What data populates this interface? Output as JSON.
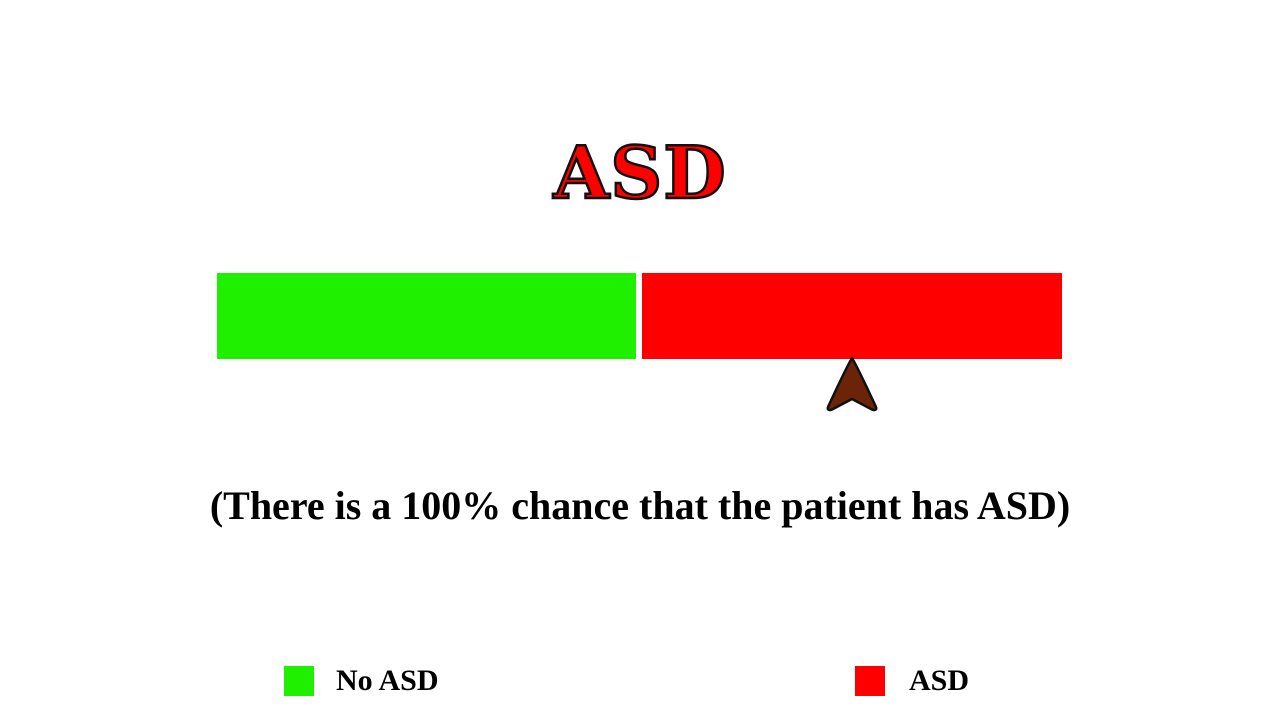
{
  "title": "ASD",
  "probability_bar": {
    "segments": [
      {
        "label": "No ASD",
        "color": "#1ff000"
      },
      {
        "label": "ASD",
        "color": "#ff0000"
      }
    ],
    "pointer": {
      "icon": "arrowhead-pointer-icon",
      "color": "#6b2408",
      "value_percent": 100
    }
  },
  "caption": "(There is a 100% chance that the patient has ASD)",
  "legend": {
    "items": [
      {
        "label": "No ASD",
        "color": "#1ff000"
      },
      {
        "label": "ASD",
        "color": "#ff0000"
      }
    ]
  }
}
